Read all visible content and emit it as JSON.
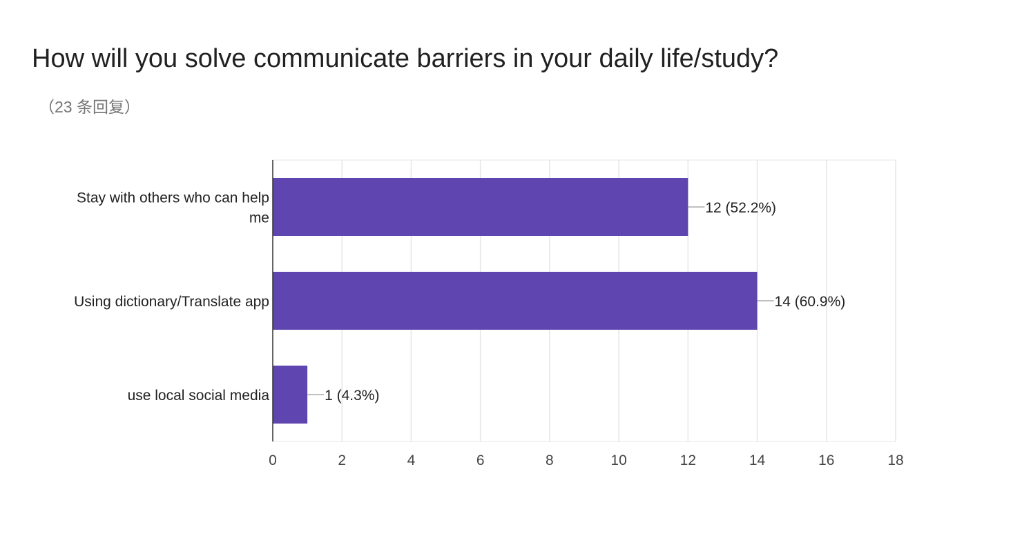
{
  "header": {
    "title": "How will you solve communicate barriers in your daily life/study?",
    "response_count": "（23 条回复）"
  },
  "colors": {
    "bar": "#5e45af",
    "grid": "#e6e6e6",
    "axis": "#333333",
    "leader": "#999999"
  },
  "chart_data": {
    "type": "bar",
    "orientation": "horizontal",
    "title": "How will you solve communicate barriers in your daily life/study?",
    "categories": [
      [
        "Stay with others who can help",
        "me"
      ],
      [
        "Using dictionary/Translate app"
      ],
      [
        "use local social media"
      ]
    ],
    "values": [
      12,
      14,
      1
    ],
    "data_labels": [
      "12 (52.2%)",
      "14 (60.9%)",
      "1 (4.3%)"
    ],
    "xlim": [
      0,
      18
    ],
    "x_ticks": [
      "0",
      "2",
      "4",
      "6",
      "8",
      "10",
      "12",
      "14",
      "16",
      "18"
    ],
    "grid": true,
    "legend": "none"
  }
}
